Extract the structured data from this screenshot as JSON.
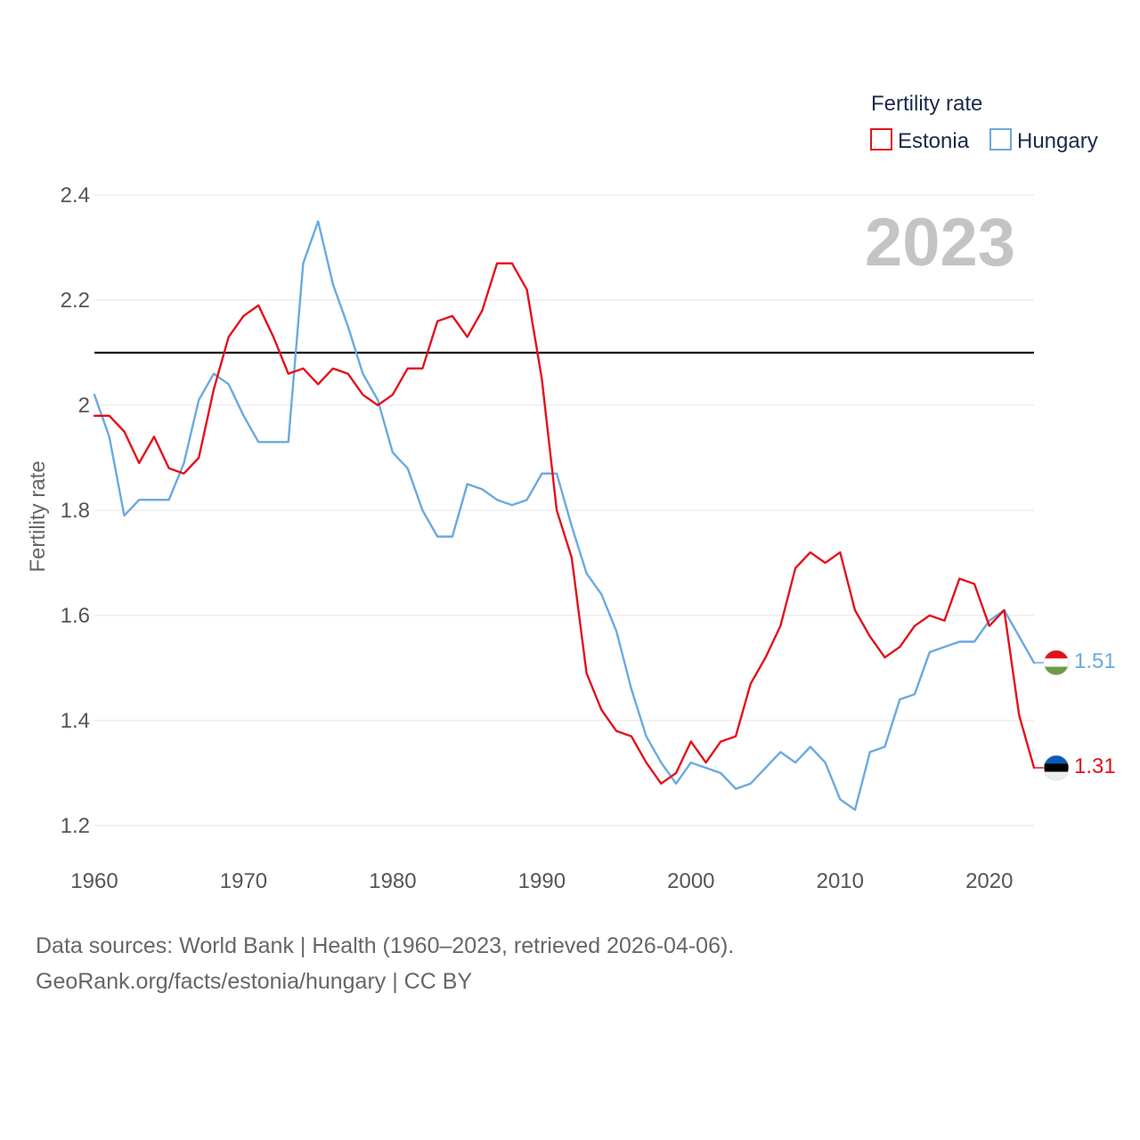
{
  "chart_data": {
    "type": "line",
    "ylabel": "Fertility rate",
    "xlabel": "",
    "xlim": [
      1960,
      2023
    ],
    "ylim": [
      1.2,
      2.4
    ],
    "yticks": [
      {
        "value": 1.2,
        "label": "1.2"
      },
      {
        "value": 1.4,
        "label": "1.4"
      },
      {
        "value": 1.6,
        "label": "1.6"
      },
      {
        "value": 1.8,
        "label": "1.8"
      },
      {
        "value": 2.0,
        "label": "2"
      },
      {
        "value": 2.2,
        "label": "2.2"
      },
      {
        "value": 2.4,
        "label": "2.4"
      }
    ],
    "xticks": [
      {
        "value": 1960,
        "label": "1960"
      },
      {
        "value": 1970,
        "label": "1970"
      },
      {
        "value": 1980,
        "label": "1980"
      },
      {
        "value": 1990,
        "label": "1990"
      },
      {
        "value": 2000,
        "label": "2000"
      },
      {
        "value": 2010,
        "label": "2010"
      },
      {
        "value": 2020,
        "label": "2020"
      }
    ],
    "grid": true,
    "reference_line": {
      "value": 2.1,
      "color": "#000000"
    },
    "year_label": "2023",
    "legend": {
      "title": "Fertility rate",
      "placement": "top-right"
    },
    "x": [
      1960,
      1961,
      1962,
      1963,
      1964,
      1965,
      1966,
      1967,
      1968,
      1969,
      1970,
      1971,
      1972,
      1973,
      1974,
      1975,
      1976,
      1977,
      1978,
      1979,
      1980,
      1981,
      1982,
      1983,
      1984,
      1985,
      1986,
      1987,
      1988,
      1989,
      1990,
      1991,
      1992,
      1993,
      1994,
      1995,
      1996,
      1997,
      1998,
      1999,
      2000,
      2001,
      2002,
      2003,
      2004,
      2005,
      2006,
      2007,
      2008,
      2009,
      2010,
      2011,
      2012,
      2013,
      2014,
      2015,
      2016,
      2017,
      2018,
      2019,
      2020,
      2021,
      2022,
      2023
    ],
    "series": [
      {
        "name": "Estonia",
        "color": "#e3111b",
        "end_label": "1.31",
        "flag_icon": "estonia-flag-icon",
        "values": [
          1.98,
          1.98,
          1.95,
          1.89,
          1.94,
          1.88,
          1.87,
          1.9,
          2.03,
          2.13,
          2.17,
          2.19,
          2.13,
          2.06,
          2.07,
          2.04,
          2.07,
          2.06,
          2.02,
          2.0,
          2.02,
          2.07,
          2.07,
          2.16,
          2.17,
          2.13,
          2.18,
          2.27,
          2.27,
          2.22,
          2.05,
          1.8,
          1.71,
          1.49,
          1.42,
          1.38,
          1.37,
          1.32,
          1.28,
          1.3,
          1.36,
          1.32,
          1.36,
          1.37,
          1.47,
          1.52,
          1.58,
          1.69,
          1.72,
          1.7,
          1.72,
          1.61,
          1.56,
          1.52,
          1.54,
          1.58,
          1.6,
          1.59,
          1.67,
          1.66,
          1.58,
          1.61,
          1.41,
          1.31
        ]
      },
      {
        "name": "Hungary",
        "color": "#6aa9e0",
        "end_label": "1.51",
        "flag_icon": "hungary-flag-icon",
        "values": [
          2.02,
          1.94,
          1.79,
          1.82,
          1.82,
          1.82,
          1.89,
          2.01,
          2.06,
          2.04,
          1.98,
          1.93,
          1.93,
          1.93,
          2.27,
          2.35,
          2.23,
          2.15,
          2.06,
          2.01,
          1.91,
          1.88,
          1.8,
          1.75,
          1.75,
          1.85,
          1.84,
          1.82,
          1.81,
          1.82,
          1.87,
          1.87,
          1.77,
          1.68,
          1.64,
          1.57,
          1.46,
          1.37,
          1.32,
          1.28,
          1.32,
          1.31,
          1.3,
          1.27,
          1.28,
          1.31,
          1.34,
          1.32,
          1.35,
          1.32,
          1.25,
          1.23,
          1.34,
          1.35,
          1.44,
          1.45,
          1.53,
          1.54,
          1.55,
          1.55,
          1.59,
          1.61,
          1.56,
          1.51
        ]
      }
    ]
  },
  "footer": {
    "line1": "Data sources: World Bank | Health (1960–2023, retrieved 2026-04-06).",
    "line2": "GeoRank.org/facts/estonia/hungary | CC BY"
  }
}
